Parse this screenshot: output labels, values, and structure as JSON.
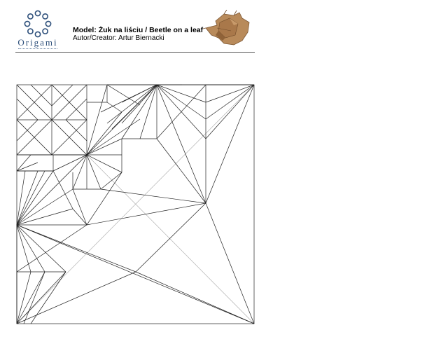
{
  "header": {
    "logo_text": "Origami",
    "model_title": "Model: Żuk na liściu / Beetle on a leaf",
    "author": "Autor/Creator: Artur Biernacki",
    "photo_icon": "origami-beetle-photo",
    "logo_icon": "origami-ring-logo"
  },
  "colors": {
    "mountain_line": "#222222",
    "valley_line": "#a8a8a8",
    "logo_blue": "#2d4f7a",
    "photo_tan": "#b88a5a"
  }
}
